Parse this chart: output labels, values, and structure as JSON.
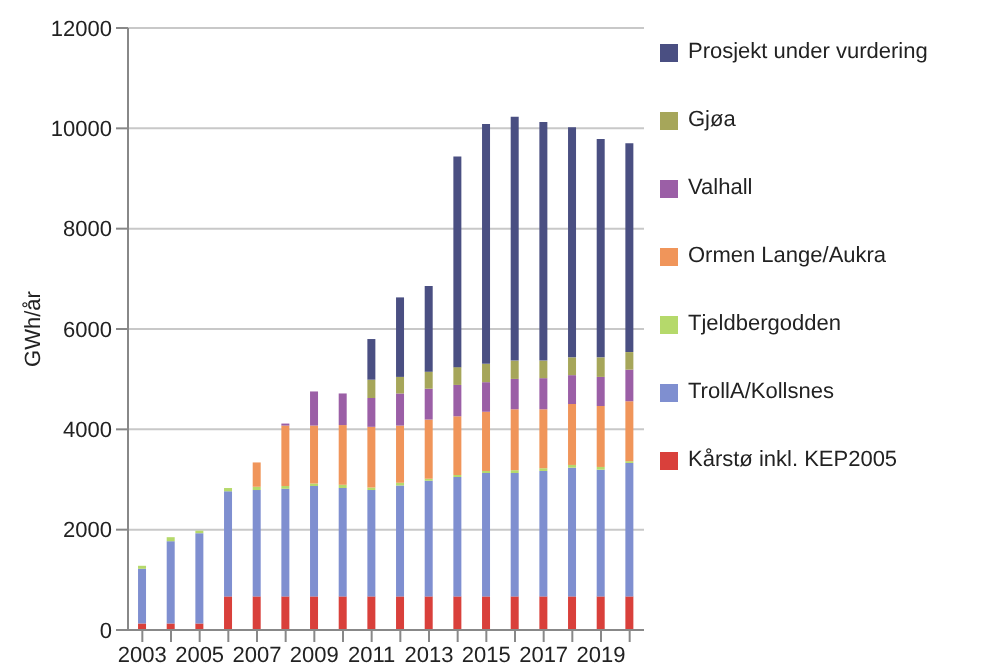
{
  "chart_data": {
    "type": "bar",
    "stacked": true,
    "ylabel": "GWh/år",
    "categories": [
      "2003",
      null,
      "2005",
      null,
      "2007",
      null,
      "2009",
      null,
      "2011",
      null,
      "2013",
      null,
      "2015",
      null,
      "2017",
      null,
      "2019",
      null
    ],
    "series": [
      {
        "name": "Kårstø inkl. KEP2005",
        "color": "#d9403b",
        "values": [
          130,
          130,
          130,
          670,
          670,
          670,
          670,
          670,
          670,
          670,
          670,
          670,
          670,
          670,
          670,
          670,
          670,
          670
        ]
      },
      {
        "name": "TrollA/Kollsnes",
        "color": "#7f8fd0",
        "values": [
          1090,
          1640,
          1800,
          2095,
          2120,
          2145,
          2200,
          2160,
          2120,
          2210,
          2305,
          2380,
          2460,
          2460,
          2500,
          2565,
          2525,
          2660
        ]
      },
      {
        "name": "Tjeldbergodden",
        "color": "#b5d96b",
        "values": [
          60,
          80,
          50,
          65,
          65,
          55,
          50,
          65,
          50,
          55,
          40,
          40,
          40,
          55,
          55,
          55,
          55,
          35
        ]
      },
      {
        "name": "Ormen Lange/Aukra",
        "color": "#f0955a",
        "values": [
          null,
          null,
          null,
          null,
          485,
          1205,
          1155,
          1190,
          1210,
          1140,
          1180,
          1170,
          1180,
          1215,
          1175,
          1215,
          1215,
          1195
        ]
      },
      {
        "name": "Valhall",
        "color": "#9b5fa6",
        "values": [
          null,
          null,
          null,
          null,
          null,
          40,
          680,
          630,
          575,
          640,
          615,
          625,
          590,
          605,
          620,
          575,
          580,
          630
        ]
      },
      {
        "name": "Gjøa",
        "color": "#a6a65a",
        "values": [
          null,
          null,
          null,
          null,
          null,
          null,
          null,
          null,
          365,
          330,
          340,
          355,
          365,
          365,
          350,
          355,
          390,
          350
        ]
      },
      {
        "name": "Prosjekt under vurdering",
        "color": "#4a4f82",
        "values": [
          null,
          null,
          null,
          null,
          null,
          null,
          null,
          null,
          810,
          1585,
          1705,
          4200,
          4780,
          4860,
          4755,
          4585,
          4350,
          4165
        ]
      }
    ],
    "ylim": [
      0,
      12000
    ],
    "yticks": [
      0,
      2000,
      4000,
      6000,
      8000,
      10000,
      12000
    ],
    "grid": "y",
    "legend": "right"
  }
}
